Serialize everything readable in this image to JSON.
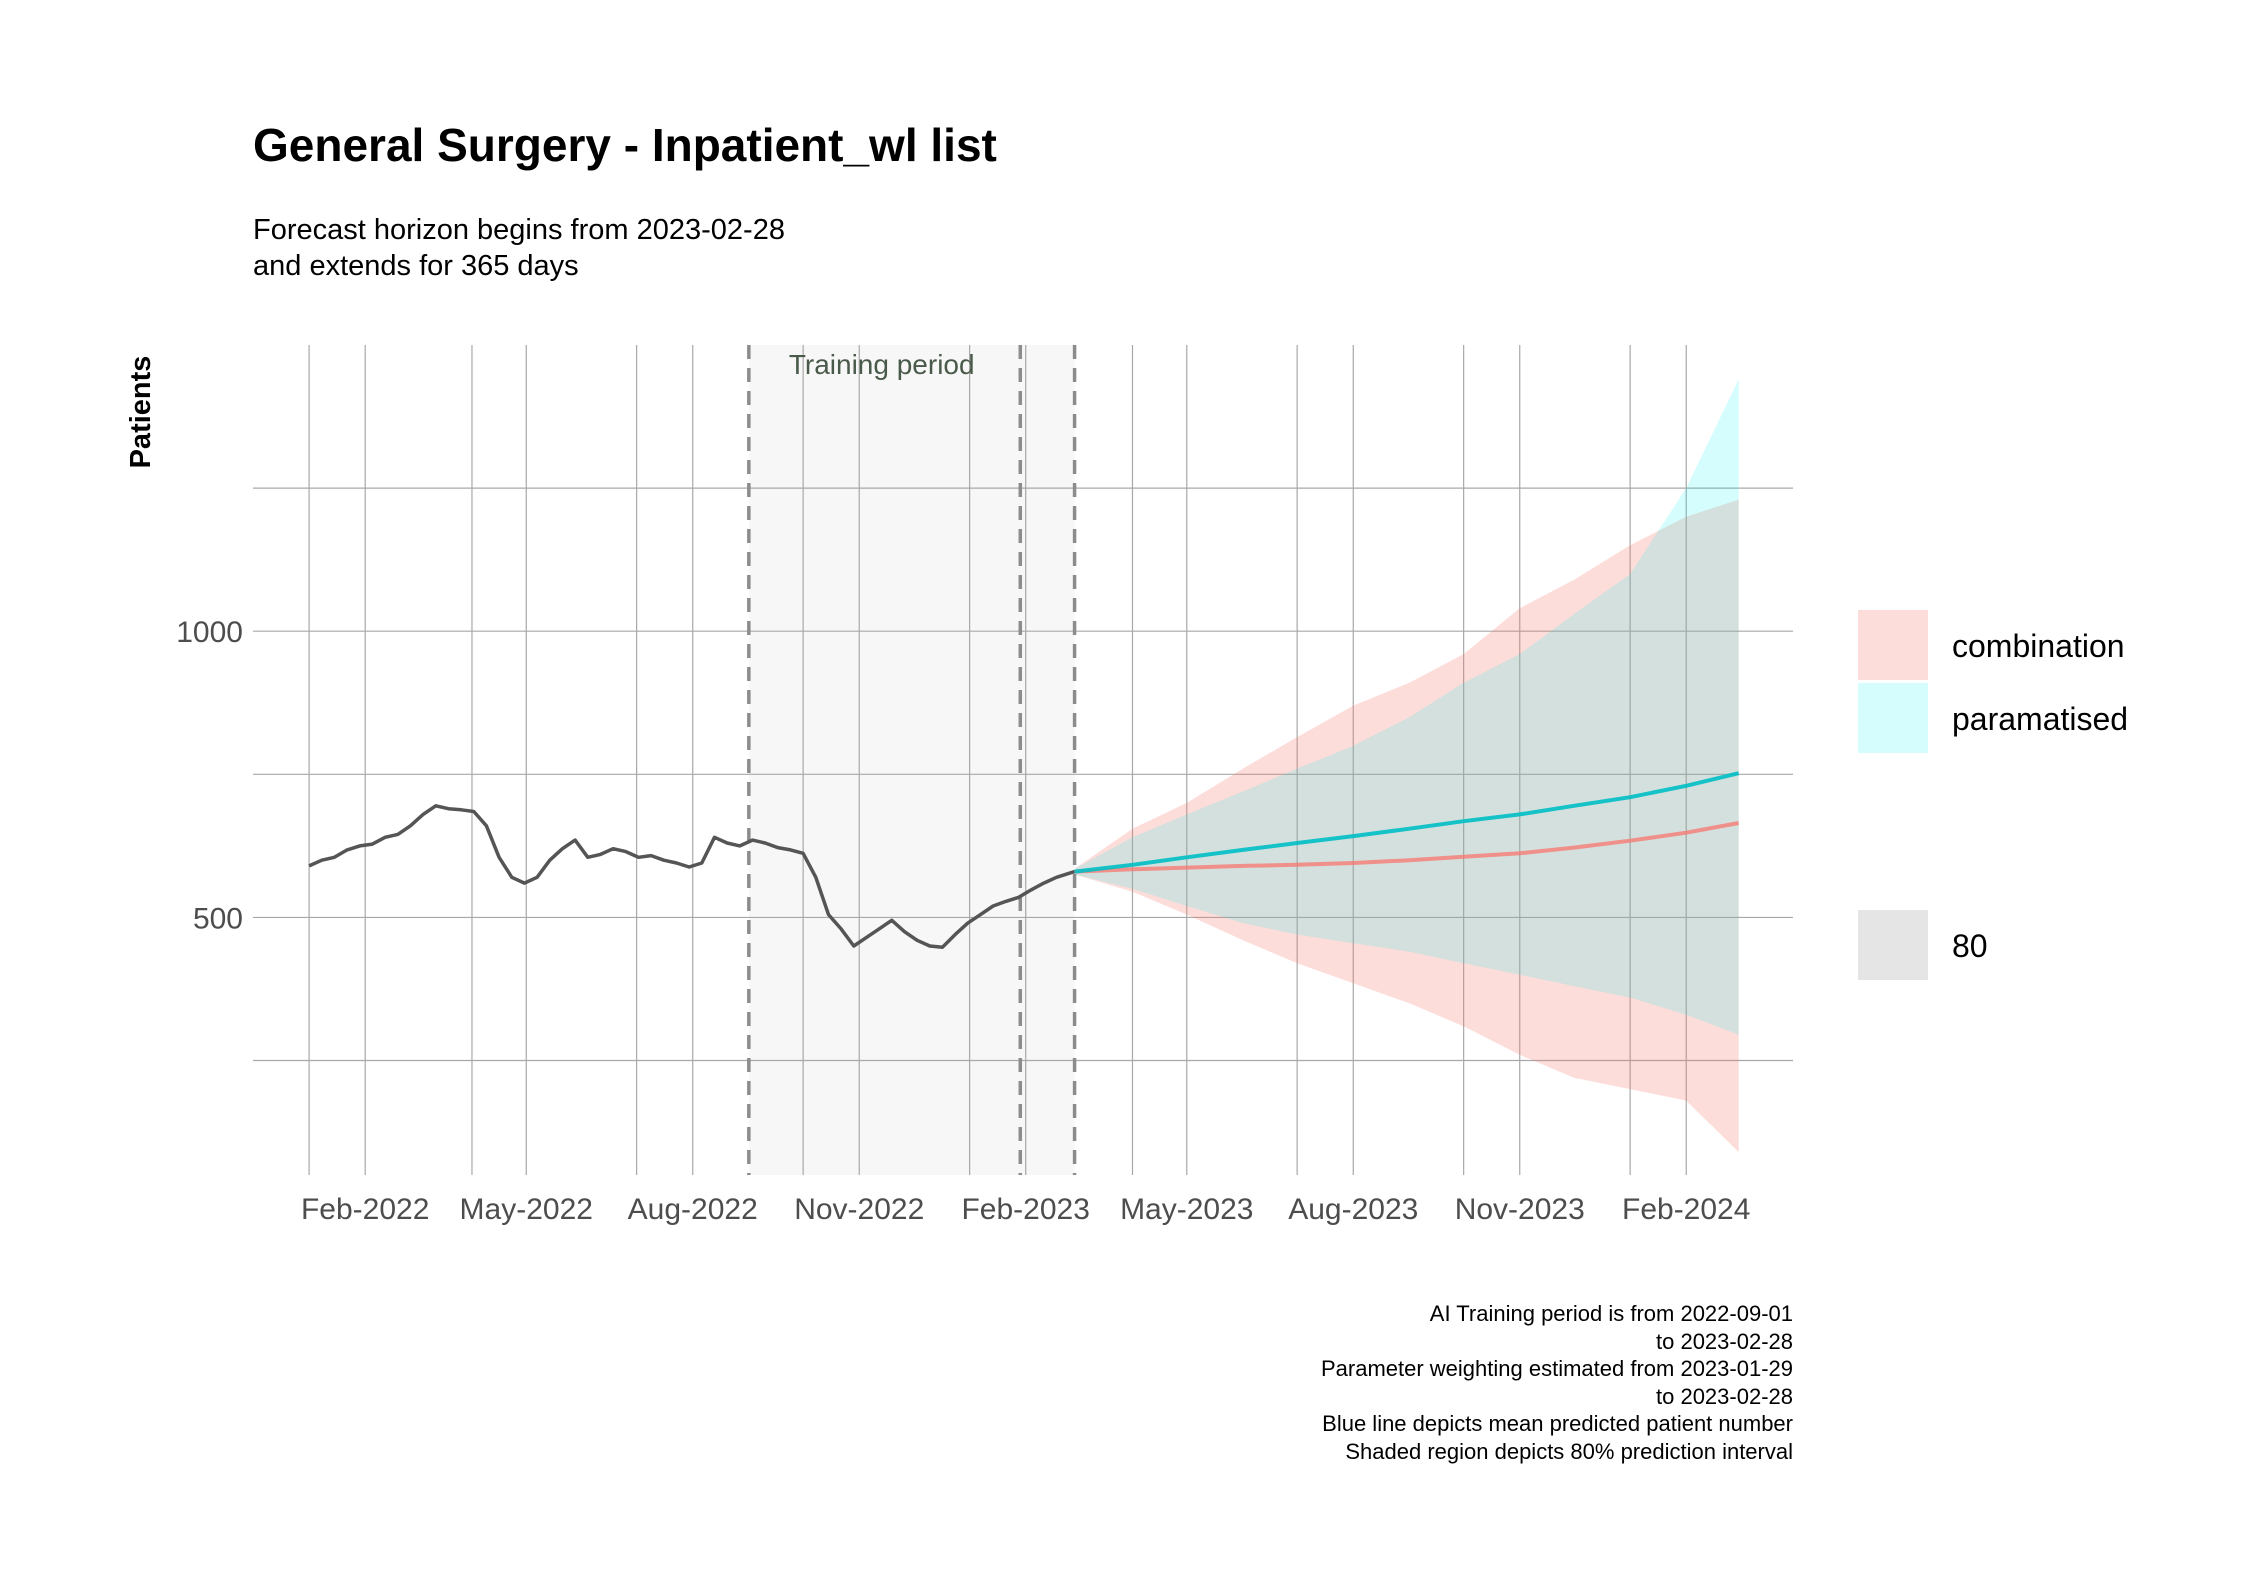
{
  "title": "General Surgery - Inpatient_wl list",
  "subtitle": [
    "Forecast horizon begins from 2023-02-28",
    "and extends for 365 days"
  ],
  "caption": [
    "AI Training period is from 2022-09-01",
    "to 2023-02-28",
    "Parameter weighting estimated from 2023-01-29",
    "to 2023-02-28",
    "Blue line depicts mean predicted patient number",
    "Shaded region depicts 80% prediction interval"
  ],
  "legend": {
    "fill": [
      {
        "label": "combination",
        "color": "#F8766D"
      },
      {
        "label": "paramatised",
        "color": "#00F2F2"
      }
    ],
    "interval": {
      "label": "80",
      "color": "#E5E5E5"
    }
  },
  "chart_data": {
    "type": "line",
    "title": "General Surgery - Inpatient_wl list",
    "xlabel": "",
    "ylabel": "Patients",
    "x_tick_labels": [
      "Feb-2022",
      "May-2022",
      "Aug-2022",
      "Nov-2022",
      "Feb-2023",
      "May-2023",
      "Aug-2023",
      "Nov-2023",
      "Feb-2024"
    ],
    "y_ticks": [
      500,
      1000
    ],
    "ylim": [
      50,
      1500
    ],
    "grid": true,
    "legend_position": "right",
    "training_period": {
      "label": "Training period",
      "start": "2022-09-01",
      "end": "2023-02-28",
      "weighting_start": "2023-01-29"
    },
    "observed": {
      "name": "observed",
      "color": "#555555",
      "points": [
        [
          "2022-01-01",
          590
        ],
        [
          "2022-01-08",
          600
        ],
        [
          "2022-01-15",
          605
        ],
        [
          "2022-01-22",
          618
        ],
        [
          "2022-01-29",
          625
        ],
        [
          "2022-02-05",
          628
        ],
        [
          "2022-02-12",
          640
        ],
        [
          "2022-02-19",
          645
        ],
        [
          "2022-02-26",
          660
        ],
        [
          "2022-03-05",
          680
        ],
        [
          "2022-03-12",
          695
        ],
        [
          "2022-03-19",
          690
        ],
        [
          "2022-03-26",
          688
        ],
        [
          "2022-04-02",
          685
        ],
        [
          "2022-04-09",
          660
        ],
        [
          "2022-04-16",
          605
        ],
        [
          "2022-04-23",
          570
        ],
        [
          "2022-04-30",
          560
        ],
        [
          "2022-05-07",
          570
        ],
        [
          "2022-05-14",
          600
        ],
        [
          "2022-05-21",
          620
        ],
        [
          "2022-05-28",
          635
        ],
        [
          "2022-06-04",
          605
        ],
        [
          "2022-06-11",
          610
        ],
        [
          "2022-06-18",
          620
        ],
        [
          "2022-06-25",
          615
        ],
        [
          "2022-07-02",
          605
        ],
        [
          "2022-07-09",
          608
        ],
        [
          "2022-07-16",
          600
        ],
        [
          "2022-07-23",
          595
        ],
        [
          "2022-07-30",
          588
        ],
        [
          "2022-08-06",
          595
        ],
        [
          "2022-08-13",
          640
        ],
        [
          "2022-08-20",
          630
        ],
        [
          "2022-08-27",
          625
        ],
        [
          "2022-09-03",
          635
        ],
        [
          "2022-09-10",
          630
        ],
        [
          "2022-09-17",
          622
        ],
        [
          "2022-09-24",
          618
        ],
        [
          "2022-10-01",
          612
        ],
        [
          "2022-10-08",
          570
        ],
        [
          "2022-10-15",
          505
        ],
        [
          "2022-10-22",
          480
        ],
        [
          "2022-10-29",
          450
        ],
        [
          "2022-11-05",
          465
        ],
        [
          "2022-11-12",
          480
        ],
        [
          "2022-11-19",
          495
        ],
        [
          "2022-11-26",
          475
        ],
        [
          "2022-12-03",
          460
        ],
        [
          "2022-12-10",
          450
        ],
        [
          "2022-12-17",
          448
        ],
        [
          "2022-12-24",
          470
        ],
        [
          "2022-12-31",
          490
        ],
        [
          "2023-01-07",
          505
        ],
        [
          "2023-01-14",
          520
        ],
        [
          "2023-01-21",
          528
        ],
        [
          "2023-01-28",
          535
        ],
        [
          "2023-02-04",
          548
        ],
        [
          "2023-02-11",
          560
        ],
        [
          "2023-02-18",
          570
        ],
        [
          "2023-02-28",
          580
        ]
      ]
    },
    "series": [
      {
        "name": "paramatised",
        "color": "#00BFC4",
        "band_color": "#00F2F2",
        "x": [
          "2023-02-28",
          "2023-04-01",
          "2023-05-01",
          "2023-06-01",
          "2023-07-01",
          "2023-08-01",
          "2023-09-01",
          "2023-10-01",
          "2023-11-01",
          "2023-12-01",
          "2024-01-01",
          "2024-02-01",
          "2024-03-01"
        ],
        "mean": [
          580,
          592,
          605,
          618,
          630,
          642,
          655,
          668,
          680,
          695,
          710,
          730,
          752
        ],
        "lower": [
          575,
          550,
          520,
          490,
          470,
          455,
          440,
          420,
          400,
          380,
          360,
          330,
          295
        ],
        "upper": [
          585,
          640,
          680,
          720,
          760,
          800,
          850,
          910,
          960,
          1030,
          1100,
          1250,
          1440
        ]
      },
      {
        "name": "combination",
        "color": "#F8766D",
        "band_color": "#F8766D",
        "x": [
          "2023-02-28",
          "2023-04-01",
          "2023-05-01",
          "2023-06-01",
          "2023-07-01",
          "2023-08-01",
          "2023-09-01",
          "2023-10-01",
          "2023-11-01",
          "2023-12-01",
          "2024-01-01",
          "2024-02-01",
          "2024-03-01"
        ],
        "mean": [
          580,
          584,
          587,
          590,
          592,
          595,
          600,
          606,
          612,
          622,
          634,
          648,
          665
        ],
        "lower": [
          575,
          545,
          505,
          460,
          420,
          385,
          350,
          310,
          260,
          220,
          200,
          180,
          90
        ],
        "upper": [
          585,
          655,
          700,
          760,
          815,
          870,
          910,
          960,
          1040,
          1090,
          1150,
          1200,
          1230
        ]
      }
    ]
  }
}
